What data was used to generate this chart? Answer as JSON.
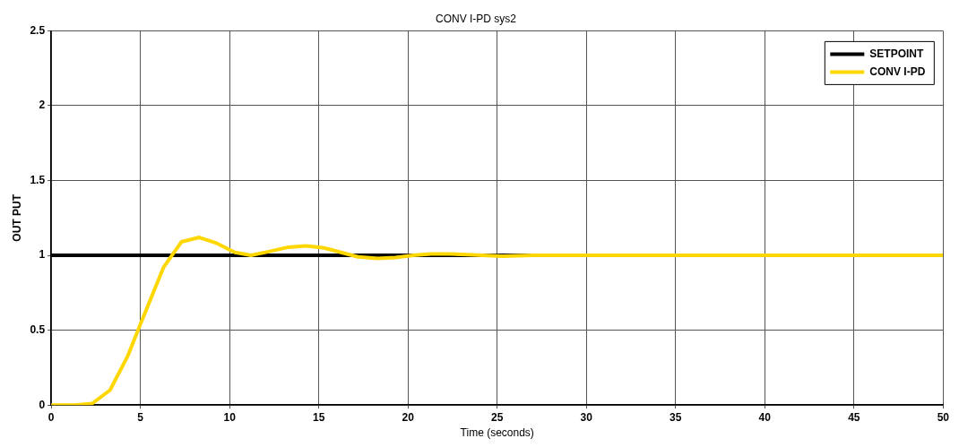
{
  "chart_data": {
    "type": "line",
    "title": "CONV I-PD sys2",
    "xlabel": "Time (seconds)",
    "ylabel": "OUT PUT",
    "xlim": [
      0,
      50
    ],
    "xticks": [
      0,
      5,
      10,
      15,
      20,
      25,
      30,
      35,
      40,
      45,
      50
    ],
    "ylim": [
      0,
      2.5
    ],
    "yticks": [
      0,
      0.5,
      1,
      1.5,
      2,
      2.5
    ],
    "grid": true,
    "legend": "top right",
    "series": [
      {
        "name": "SETPOINT",
        "color": "#000000",
        "x": [
          0,
          50
        ],
        "values": [
          1,
          1
        ]
      },
      {
        "name": "CONV I-PD",
        "color": "#ffd700",
        "x": [
          0,
          1.3,
          2.3,
          3.3,
          4.3,
          5.0,
          6.3,
          7.3,
          8.3,
          9.3,
          10.3,
          11.2,
          12.2,
          13.3,
          14.3,
          15.3,
          17.2,
          18.3,
          19.3,
          20.3,
          21.3,
          22.3,
          23.3,
          25.3,
          27,
          30,
          35,
          40,
          45,
          50
        ],
        "values": [
          0,
          0,
          0.01,
          0.1,
          0.33,
          0.54,
          0.92,
          1.09,
          1.12,
          1.08,
          1.02,
          1.0,
          1.025,
          1.055,
          1.063,
          1.05,
          0.99,
          0.98,
          0.985,
          1.0,
          1.01,
          1.01,
          1.005,
          0.995,
          1.0,
          1.0,
          1.0,
          1.0,
          1.0,
          1.0
        ]
      }
    ]
  }
}
